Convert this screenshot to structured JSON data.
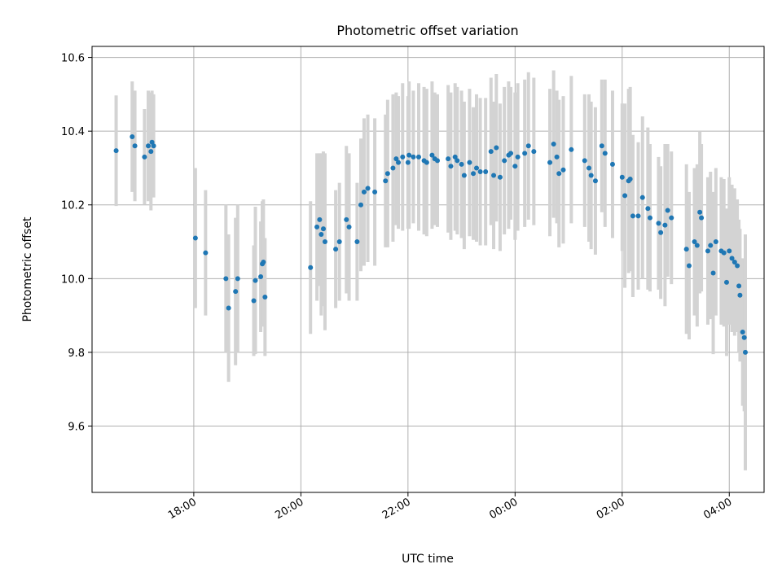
{
  "chart_data": {
    "type": "scatter",
    "title": "Photometric offset variation",
    "xlabel": "UTC time",
    "ylabel": "Photometric offset",
    "xlim_hours": [
      16.1,
      28.65
    ],
    "ylim": [
      9.42,
      10.63
    ],
    "grid": true,
    "x_ticks": [
      {
        "h": 18,
        "label": "18:00"
      },
      {
        "h": 20,
        "label": "20:00"
      },
      {
        "h": 22,
        "label": "22:00"
      },
      {
        "h": 24,
        "label": "00:00"
      },
      {
        "h": 26,
        "label": "02:00"
      },
      {
        "h": 28,
        "label": "04:00"
      }
    ],
    "y_ticks": [
      {
        "v": 9.6,
        "label": "9.6"
      },
      {
        "v": 9.8,
        "label": "9.8"
      },
      {
        "v": 10.0,
        "label": "10.0"
      },
      {
        "v": 10.2,
        "label": "10.2"
      },
      {
        "v": 10.4,
        "label": "10.4"
      },
      {
        "v": 10.6,
        "label": "10.6"
      }
    ],
    "series": [
      {
        "name": "offset",
        "marker_color": "#1f77b4",
        "error_color": "#d3d3d3",
        "points": [
          [
            16.55,
            10.347,
            0.15
          ],
          [
            16.85,
            10.385,
            0.15
          ],
          [
            16.9,
            10.36,
            0.15
          ],
          [
            17.08,
            10.33,
            0.13
          ],
          [
            17.15,
            10.36,
            0.15
          ],
          [
            17.2,
            10.345,
            0.16
          ],
          [
            17.22,
            10.37,
            0.14
          ],
          [
            17.25,
            10.36,
            0.14
          ],
          [
            18.03,
            10.11,
            0.19
          ],
          [
            18.22,
            10.07,
            0.17
          ],
          [
            18.6,
            10.0,
            0.2
          ],
          [
            18.65,
            9.92,
            0.2
          ],
          [
            18.78,
            9.965,
            0.2
          ],
          [
            18.82,
            10.0,
            0.2
          ],
          [
            19.12,
            9.94,
            0.15
          ],
          [
            19.15,
            9.995,
            0.2
          ],
          [
            19.25,
            10.005,
            0.15
          ],
          [
            19.28,
            10.04,
            0.17
          ],
          [
            19.3,
            10.045,
            0.17
          ],
          [
            19.33,
            9.95,
            0.16
          ],
          [
            20.18,
            10.03,
            0.18
          ],
          [
            20.3,
            10.14,
            0.2
          ],
          [
            20.35,
            10.16,
            0.18
          ],
          [
            20.38,
            10.12,
            0.22
          ],
          [
            20.42,
            10.135,
            0.21
          ],
          [
            20.45,
            10.1,
            0.24
          ],
          [
            20.65,
            10.08,
            0.16
          ],
          [
            20.72,
            10.1,
            0.16
          ],
          [
            20.85,
            10.16,
            0.2
          ],
          [
            20.9,
            10.14,
            0.2
          ],
          [
            21.05,
            10.1,
            0.16
          ],
          [
            21.12,
            10.2,
            0.18
          ],
          [
            21.18,
            10.235,
            0.2
          ],
          [
            21.25,
            10.245,
            0.2
          ],
          [
            21.38,
            10.235,
            0.2
          ],
          [
            21.58,
            10.265,
            0.18
          ],
          [
            21.62,
            10.285,
            0.2
          ],
          [
            21.72,
            10.3,
            0.2
          ],
          [
            21.78,
            10.325,
            0.18
          ],
          [
            21.82,
            10.315,
            0.18
          ],
          [
            21.9,
            10.33,
            0.2
          ],
          [
            22.0,
            10.315,
            0.18
          ],
          [
            22.02,
            10.335,
            0.2
          ],
          [
            22.1,
            10.33,
            0.18
          ],
          [
            22.2,
            10.33,
            0.2
          ],
          [
            22.3,
            10.32,
            0.2
          ],
          [
            22.35,
            10.315,
            0.2
          ],
          [
            22.45,
            10.335,
            0.2
          ],
          [
            22.5,
            10.325,
            0.18
          ],
          [
            22.55,
            10.32,
            0.18
          ],
          [
            22.75,
            10.325,
            0.2
          ],
          [
            22.8,
            10.305,
            0.2
          ],
          [
            22.88,
            10.33,
            0.2
          ],
          [
            22.92,
            10.32,
            0.2
          ],
          [
            23.0,
            10.31,
            0.2
          ],
          [
            23.05,
            10.28,
            0.2
          ],
          [
            23.15,
            10.315,
            0.2
          ],
          [
            23.22,
            10.285,
            0.18
          ],
          [
            23.28,
            10.3,
            0.2
          ],
          [
            23.35,
            10.29,
            0.2
          ],
          [
            23.45,
            10.29,
            0.2
          ],
          [
            23.55,
            10.345,
            0.2
          ],
          [
            23.6,
            10.28,
            0.2
          ],
          [
            23.65,
            10.355,
            0.2
          ],
          [
            23.72,
            10.275,
            0.2
          ],
          [
            23.8,
            10.32,
            0.2
          ],
          [
            23.88,
            10.335,
            0.2
          ],
          [
            23.92,
            10.34,
            0.18
          ],
          [
            24.0,
            10.305,
            0.2
          ],
          [
            24.05,
            10.33,
            0.2
          ],
          [
            24.18,
            10.34,
            0.2
          ],
          [
            24.25,
            10.36,
            0.2
          ],
          [
            24.35,
            10.345,
            0.2
          ],
          [
            24.65,
            10.315,
            0.2
          ],
          [
            24.72,
            10.365,
            0.2
          ],
          [
            24.78,
            10.33,
            0.18
          ],
          [
            24.82,
            10.285,
            0.2
          ],
          [
            24.9,
            10.295,
            0.2
          ],
          [
            25.05,
            10.35,
            0.2
          ],
          [
            25.3,
            10.32,
            0.18
          ],
          [
            25.38,
            10.3,
            0.2
          ],
          [
            25.42,
            10.28,
            0.2
          ],
          [
            25.5,
            10.265,
            0.2
          ],
          [
            25.62,
            10.36,
            0.18
          ],
          [
            25.68,
            10.34,
            0.2
          ],
          [
            25.82,
            10.31,
            0.2
          ],
          [
            26.0,
            10.275,
            0.2
          ],
          [
            26.05,
            10.225,
            0.25
          ],
          [
            26.12,
            10.265,
            0.25
          ],
          [
            26.15,
            10.27,
            0.25
          ],
          [
            26.2,
            10.17,
            0.22
          ],
          [
            26.3,
            10.17,
            0.2
          ],
          [
            26.38,
            10.22,
            0.22
          ],
          [
            26.48,
            10.19,
            0.22
          ],
          [
            26.52,
            10.165,
            0.2
          ],
          [
            26.68,
            10.15,
            0.18
          ],
          [
            26.72,
            10.125,
            0.18
          ],
          [
            26.8,
            10.145,
            0.22
          ],
          [
            26.85,
            10.185,
            0.18
          ],
          [
            26.92,
            10.165,
            0.18
          ],
          [
            27.2,
            10.08,
            0.23
          ],
          [
            27.25,
            10.035,
            0.2
          ],
          [
            27.35,
            10.1,
            0.2
          ],
          [
            27.4,
            10.09,
            0.22
          ],
          [
            27.45,
            10.18,
            0.22
          ],
          [
            27.48,
            10.165,
            0.2
          ],
          [
            27.6,
            10.075,
            0.2
          ],
          [
            27.65,
            10.09,
            0.2
          ],
          [
            27.7,
            10.015,
            0.22
          ],
          [
            27.75,
            10.1,
            0.2
          ],
          [
            27.85,
            10.075,
            0.2
          ],
          [
            27.9,
            10.07,
            0.2
          ],
          [
            27.95,
            9.99,
            0.2
          ],
          [
            28.0,
            10.075,
            0.2
          ],
          [
            28.05,
            10.055,
            0.2
          ],
          [
            28.1,
            10.045,
            0.2
          ],
          [
            28.15,
            10.035,
            0.18
          ],
          [
            28.18,
            9.98,
            0.18
          ],
          [
            28.2,
            9.955,
            0.18
          ],
          [
            28.25,
            9.855,
            0.2
          ],
          [
            28.28,
            9.84,
            0.2
          ],
          [
            28.3,
            9.8,
            0.32
          ]
        ]
      }
    ]
  }
}
